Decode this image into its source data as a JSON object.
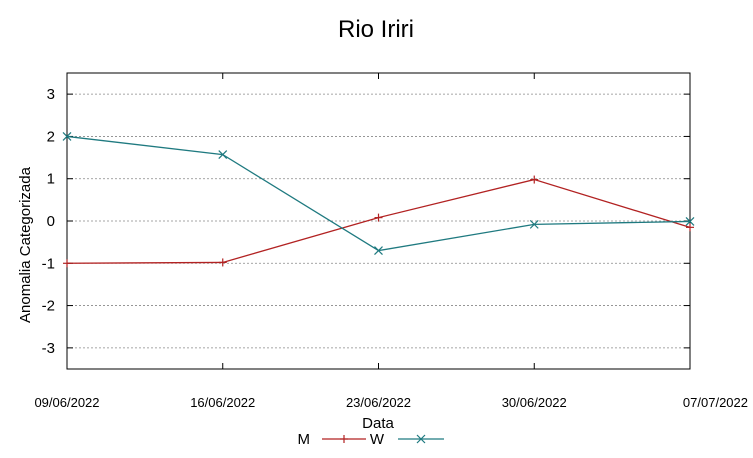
{
  "chart_data": {
    "type": "line",
    "title": "Rio Iriri",
    "xlabel": "Data",
    "ylabel": "Anomalia Categorizada",
    "categories": [
      "09/06/2022",
      "16/06/2022",
      "23/06/2022",
      "30/06/2022",
      "07/07/2022"
    ],
    "ylim": [
      -3.5,
      3.5
    ],
    "yticks": [
      3,
      2,
      1,
      0,
      -1,
      -2,
      -3
    ],
    "ytick_labels": [
      "3",
      "2",
      "1",
      "0",
      "-1",
      "-2",
      "-3"
    ],
    "grid": true,
    "legend_position": "bottom",
    "series": [
      {
        "name": "M",
        "values": [
          -1.0,
          -0.98,
          0.08,
          0.98,
          -0.15
        ],
        "color": "#b22222",
        "marker": "+"
      },
      {
        "name": "W",
        "values": [
          2.0,
          1.57,
          -0.7,
          -0.08,
          -0.01
        ],
        "color": "#1f7a80",
        "marker": "x"
      }
    ]
  }
}
